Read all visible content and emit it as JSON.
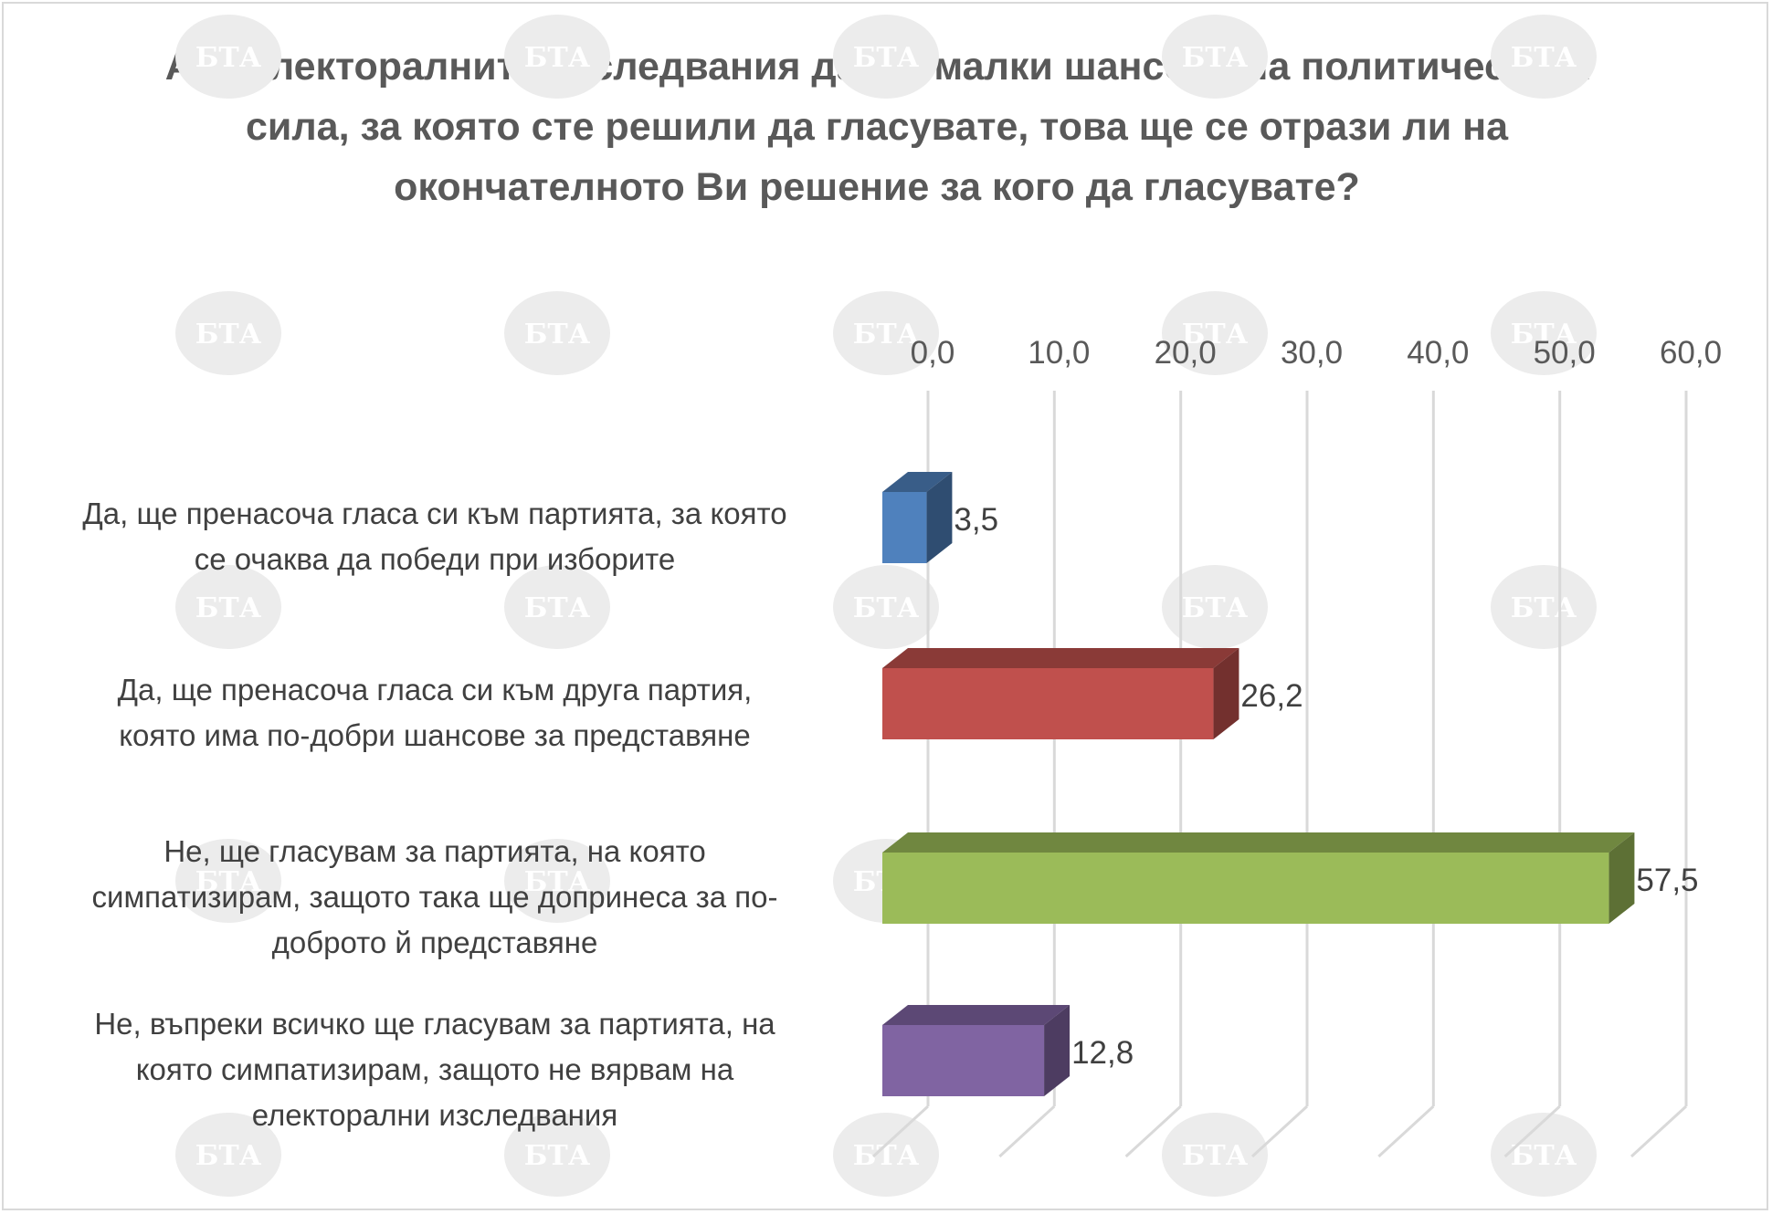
{
  "chart_data": {
    "type": "bar",
    "orientation": "horizontal",
    "style": "3d",
    "title": "Ако електоралните изследвания дават малки шансове на политическата сила, за която сте решили да гласувате, това ще се отрази ли на окончателното Ви решение за кого да гласувате?",
    "categories": [
      [
        "Да, ще пренасоча гласа си към партията, за която",
        "се очаква да победи при изборите"
      ],
      [
        "Да, ще пренасоча гласа си към друга партия,",
        "която има по-добри шансове за представяне"
      ],
      [
        "Не, ще гласувам за партията, на която",
        "симпатизирам, защото така ще допринеса за по-",
        "доброто й представяне"
      ],
      [
        "Не, въпреки всичко ще гласувам за партията, на",
        "която симпатизирам, защото не вярвам на",
        "електорални изследвания"
      ]
    ],
    "values": [
      3.5,
      26.2,
      57.5,
      12.8
    ],
    "data_labels": [
      "3,5",
      "26,2",
      "57,5",
      "12,8"
    ],
    "bar_colors": [
      "#4f81bd",
      "#c0504d",
      "#9bbb59",
      "#8064a2"
    ],
    "xlim": [
      0,
      60
    ],
    "ticks": [
      0,
      10,
      20,
      30,
      40,
      50,
      60
    ],
    "tick_labels": [
      "0,0",
      "10,0",
      "20,0",
      "30,0",
      "40,0",
      "50,0",
      "60,0"
    ],
    "axis_position": "top",
    "grid": true,
    "legend": "none",
    "xlabel": "",
    "ylabel": ""
  },
  "watermark": {
    "text": "БТА",
    "color": "#ececec"
  }
}
